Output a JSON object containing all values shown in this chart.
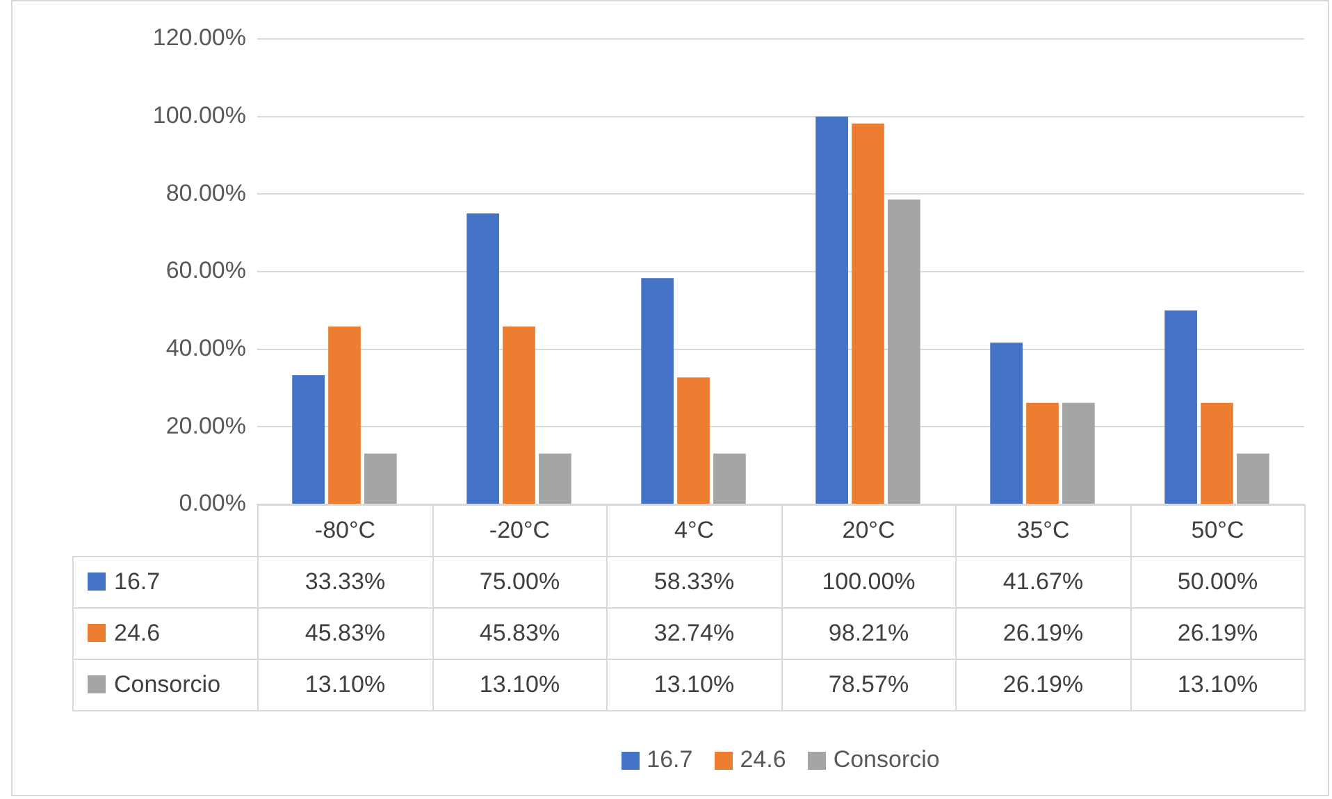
{
  "chart_data": {
    "type": "bar",
    "categories": [
      "-80°C",
      "-20°C",
      "4°C",
      "20°C",
      "35°C",
      "50°C"
    ],
    "series": [
      {
        "name": "16.7",
        "color": "#4472c4",
        "values": [
          33.33,
          75.0,
          58.33,
          100.0,
          41.67,
          50.0
        ],
        "value_labels": [
          "33.33%",
          "75.00%",
          "58.33%",
          "100.00%",
          "41.67%",
          "50.00%"
        ]
      },
      {
        "name": "24.6",
        "color": "#ed7d31",
        "values": [
          45.83,
          45.83,
          32.74,
          98.21,
          26.19,
          26.19
        ],
        "value_labels": [
          "45.83%",
          "45.83%",
          "32.74%",
          "98.21%",
          "26.19%",
          "26.19%"
        ]
      },
      {
        "name": "Consorcio",
        "color": "#a5a5a5",
        "values": [
          13.1,
          13.1,
          13.1,
          78.57,
          26.19,
          13.1
        ],
        "value_labels": [
          "13.10%",
          "13.10%",
          "13.10%",
          "78.57%",
          "26.19%",
          "13.10%"
        ]
      }
    ],
    "ylim": [
      0,
      120
    ],
    "yticks": [
      {
        "value": 0,
        "label": "0.00%"
      },
      {
        "value": 20,
        "label": "20.00%"
      },
      {
        "value": 40,
        "label": "40.00%"
      },
      {
        "value": 60,
        "label": "60.00%"
      },
      {
        "value": 80,
        "label": "80.00%"
      },
      {
        "value": 100,
        "label": "100.00%"
      },
      {
        "value": 120,
        "label": "120.00%"
      }
    ],
    "grid": "y",
    "legend": "bottom"
  }
}
